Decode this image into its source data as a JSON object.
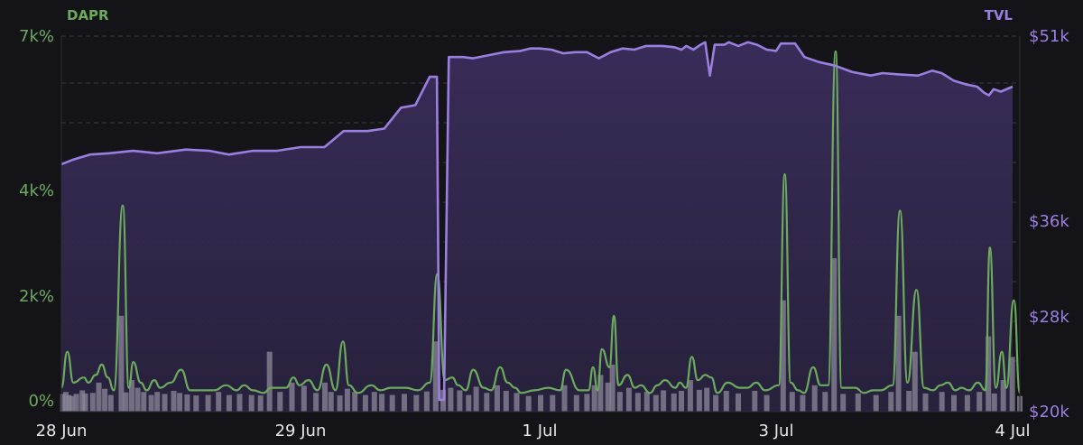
{
  "chart_data": {
    "type": "line",
    "left_axis": {
      "title": "DAPR",
      "ticks": [
        "7k%",
        "4k%",
        "2k%",
        "0%"
      ],
      "tick_values": [
        7000,
        4000,
        2000,
        0
      ],
      "range": [
        0,
        7000
      ],
      "color": "#6cab5e"
    },
    "right_axis": {
      "title": "TVL",
      "ticks": [
        "$51k",
        "$36k",
        "$28k",
        "$20k"
      ],
      "tick_values": [
        51000,
        36000,
        28000,
        20000
      ],
      "range": [
        20000,
        51000
      ],
      "color": "#9b7fe0"
    },
    "x_axis": {
      "ticks": [
        "28 Jun",
        "29 Jun",
        "1 Jul",
        "3 Jul",
        "4 Jul"
      ],
      "tick_positions_days": [
        0,
        1,
        2,
        3,
        4
      ]
    },
    "grid": true,
    "tvl_series": {
      "name": "TVL",
      "color": "#9b7fe0",
      "points": [
        [
          0.0,
          40600
        ],
        [
          0.05,
          41000
        ],
        [
          0.12,
          41400
        ],
        [
          0.2,
          41500
        ],
        [
          0.3,
          41700
        ],
        [
          0.4,
          41500
        ],
        [
          0.52,
          41800
        ],
        [
          0.62,
          41700
        ],
        [
          0.7,
          41400
        ],
        [
          0.8,
          41700
        ],
        [
          0.9,
          41700
        ],
        [
          1.0,
          42000
        ],
        [
          1.1,
          42000
        ],
        [
          1.18,
          43300
        ],
        [
          1.28,
          43300
        ],
        [
          1.35,
          43500
        ],
        [
          1.42,
          45200
        ],
        [
          1.48,
          45400
        ],
        [
          1.54,
          47700
        ],
        [
          1.57,
          47700
        ],
        [
          1.58,
          21000
        ],
        [
          1.6,
          21000
        ],
        [
          1.62,
          49300
        ],
        [
          1.68,
          49300
        ],
        [
          1.72,
          49200
        ],
        [
          1.8,
          49500
        ],
        [
          1.85,
          49700
        ],
        [
          1.92,
          49800
        ],
        [
          1.96,
          50000
        ],
        [
          2.0,
          50000
        ],
        [
          2.05,
          49900
        ],
        [
          2.1,
          49600
        ],
        [
          2.15,
          49700
        ],
        [
          2.2,
          49700
        ],
        [
          2.25,
          49200
        ],
        [
          2.3,
          49700
        ],
        [
          2.35,
          50000
        ],
        [
          2.4,
          49900
        ],
        [
          2.45,
          50200
        ],
        [
          2.52,
          50200
        ],
        [
          2.57,
          50100
        ],
        [
          2.6,
          49900
        ],
        [
          2.62,
          50200
        ],
        [
          2.65,
          49900
        ],
        [
          2.68,
          50300
        ],
        [
          2.7,
          50500
        ],
        [
          2.72,
          47800
        ],
        [
          2.74,
          50300
        ],
        [
          2.78,
          50300
        ],
        [
          2.8,
          50500
        ],
        [
          2.84,
          50200
        ],
        [
          2.88,
          50500
        ],
        [
          2.92,
          50300
        ],
        [
          2.96,
          49900
        ],
        [
          3.0,
          49800
        ],
        [
          3.02,
          50400
        ],
        [
          3.08,
          50400
        ],
        [
          3.12,
          49300
        ],
        [
          3.18,
          48900
        ],
        [
          3.25,
          48600
        ],
        [
          3.32,
          48100
        ],
        [
          3.4,
          47800
        ],
        [
          3.45,
          48000
        ],
        [
          3.52,
          47900
        ],
        [
          3.6,
          47800
        ],
        [
          3.66,
          48200
        ],
        [
          3.7,
          48000
        ],
        [
          3.75,
          47400
        ],
        [
          3.8,
          47100
        ],
        [
          3.85,
          46900
        ],
        [
          3.88,
          46400
        ],
        [
          3.9,
          46200
        ],
        [
          3.92,
          46700
        ],
        [
          3.95,
          46500
        ],
        [
          4.0,
          46900
        ]
      ]
    },
    "dapr_series": {
      "name": "DAPR",
      "color": "#6cab5e",
      "spikes": [
        [
          0.0,
          200
        ],
        [
          0.04,
          900
        ],
        [
          0.08,
          300
        ],
        [
          0.15,
          400
        ],
        [
          0.18,
          300
        ],
        [
          0.23,
          450
        ],
        [
          0.27,
          650
        ],
        [
          0.31,
          400
        ],
        [
          0.35,
          150
        ],
        [
          0.41,
          3700
        ],
        [
          0.45,
          200
        ],
        [
          0.48,
          700
        ],
        [
          0.53,
          300
        ],
        [
          0.57,
          150
        ],
        [
          0.62,
          350
        ],
        [
          0.66,
          200
        ],
        [
          0.73,
          300
        ],
        [
          0.8,
          550
        ],
        [
          0.86,
          150
        ],
        [
          0.94,
          150
        ],
        [
          1.02,
          150
        ],
        [
          1.1,
          250
        ],
        [
          1.17,
          150
        ],
        [
          1.22,
          250
        ],
        [
          1.28,
          150
        ],
        [
          1.35,
          100
        ],
        [
          1.4,
          200
        ],
        [
          1.5,
          200
        ],
        [
          1.55,
          400
        ],
        [
          1.59,
          250
        ],
        [
          1.65,
          350
        ],
        [
          1.71,
          150
        ],
        [
          1.77,
          650
        ],
        [
          1.83,
          150
        ],
        [
          1.88,
          1100
        ],
        [
          1.92,
          250
        ],
        [
          1.98,
          100
        ],
        [
          2.07,
          250
        ],
        [
          2.13,
          150
        ],
        [
          2.2,
          200
        ],
        [
          2.3,
          200
        ],
        [
          2.38,
          150
        ],
        [
          2.46,
          300
        ],
        [
          2.51,
          2400
        ],
        [
          2.56,
          350
        ],
        [
          2.61,
          400
        ],
        [
          2.65,
          250
        ],
        [
          2.7,
          150
        ],
        [
          2.75,
          550
        ],
        [
          2.82,
          200
        ],
        [
          2.87,
          150
        ],
        [
          2.93,
          600
        ],
        [
          2.98,
          300
        ],
        [
          3.03,
          200
        ],
        [
          3.07,
          100
        ],
        [
          3.16,
          150
        ],
        [
          3.25,
          200
        ],
        [
          3.33,
          150
        ],
        [
          3.37,
          550
        ],
        [
          3.46,
          150
        ],
        [
          3.52,
          150
        ],
        [
          3.55,
          600
        ],
        [
          3.58,
          150
        ],
        [
          3.61,
          950
        ],
        [
          3.66,
          600
        ],
        [
          3.69,
          1600
        ],
        [
          3.72,
          250
        ],
        [
          3.78,
          450
        ],
        [
          3.83,
          200
        ],
        [
          3.87,
          250
        ],
        [
          3.93,
          100
        ],
        [
          3.98,
          250
        ],
        [
          4.03,
          350
        ],
        [
          4.1,
          200
        ],
        [
          4.13,
          300
        ],
        [
          4.17,
          200
        ],
        [
          4.21,
          800
        ],
        [
          4.25,
          350
        ],
        [
          4.3,
          450
        ],
        [
          4.34,
          400
        ],
        [
          4.38,
          100
        ],
        [
          4.45,
          300
        ],
        [
          4.53,
          200
        ],
        [
          4.58,
          200
        ],
        [
          4.64,
          300
        ],
        [
          4.7,
          150
        ],
        [
          4.79,
          250
        ],
        [
          4.83,
          4300
        ],
        [
          4.87,
          300
        ],
        [
          4.92,
          150
        ],
        [
          4.96,
          100
        ],
        [
          5.02,
          600
        ],
        [
          5.07,
          250
        ],
        [
          5.12,
          250
        ],
        [
          5.17,
          6700
        ],
        [
          5.21,
          200
        ],
        [
          5.3,
          200
        ],
        [
          5.36,
          100
        ],
        [
          5.42,
          150
        ],
        [
          5.47,
          150
        ],
        [
          5.55,
          250
        ],
        [
          5.6,
          3600
        ],
        [
          5.65,
          300
        ],
        [
          5.71,
          2100
        ],
        [
          5.76,
          200
        ],
        [
          5.82,
          150
        ],
        [
          5.87,
          250
        ],
        [
          5.92,
          300
        ],
        [
          5.97,
          150
        ],
        [
          6.01,
          200
        ],
        [
          6.06,
          150
        ],
        [
          6.12,
          300
        ],
        [
          6.17,
          150
        ],
        [
          6.2,
          2900
        ],
        [
          6.24,
          200
        ],
        [
          6.28,
          900
        ],
        [
          6.31,
          200
        ],
        [
          6.36,
          1900
        ],
        [
          6.4,
          100
        ]
      ],
      "bars": [
        [
          0.01,
          80
        ],
        [
          0.03,
          120
        ],
        [
          0.05,
          60
        ],
        [
          0.07,
          40
        ],
        [
          0.1,
          80
        ],
        [
          0.14,
          150
        ],
        [
          0.16,
          90
        ],
        [
          0.21,
          100
        ],
        [
          0.25,
          300
        ],
        [
          0.29,
          180
        ],
        [
          0.33,
          60
        ],
        [
          0.4,
          1600
        ],
        [
          0.43,
          110
        ],
        [
          0.47,
          350
        ],
        [
          0.51,
          200
        ],
        [
          0.55,
          120
        ],
        [
          0.6,
          60
        ],
        [
          0.64,
          120
        ],
        [
          0.69,
          80
        ],
        [
          0.75,
          140
        ],
        [
          0.79,
          100
        ],
        [
          0.84,
          70
        ],
        [
          0.9,
          50
        ],
        [
          0.98,
          60
        ],
        [
          1.05,
          120
        ],
        [
          1.12,
          60
        ],
        [
          1.19,
          80
        ],
        [
          1.27,
          60
        ],
        [
          1.33,
          50
        ],
        [
          1.39,
          900
        ],
        [
          1.46,
          120
        ],
        [
          1.54,
          300
        ],
        [
          1.62,
          240
        ],
        [
          1.7,
          100
        ],
        [
          1.76,
          300
        ],
        [
          1.8,
          120
        ],
        [
          1.86,
          50
        ],
        [
          1.91,
          180
        ],
        [
          1.96,
          120
        ],
        [
          2.03,
          60
        ],
        [
          2.09,
          120
        ],
        [
          2.14,
          80
        ],
        [
          2.21,
          60
        ],
        [
          2.29,
          80
        ],
        [
          2.37,
          60
        ],
        [
          2.44,
          130
        ],
        [
          2.5,
          1100
        ],
        [
          2.55,
          160
        ],
        [
          2.6,
          200
        ],
        [
          2.66,
          150
        ],
        [
          2.72,
          60
        ],
        [
          2.77,
          220
        ],
        [
          2.84,
          100
        ],
        [
          2.91,
          250
        ],
        [
          2.97,
          140
        ],
        [
          3.04,
          100
        ],
        [
          3.12,
          40
        ],
        [
          3.2,
          60
        ],
        [
          3.28,
          60
        ],
        [
          3.36,
          250
        ],
        [
          3.44,
          60
        ],
        [
          3.51,
          80
        ],
        [
          3.56,
          250
        ],
        [
          3.6,
          450
        ],
        [
          3.65,
          300
        ],
        [
          3.68,
          650
        ],
        [
          3.73,
          120
        ],
        [
          3.79,
          200
        ],
        [
          3.85,
          100
        ],
        [
          3.91,
          120
        ],
        [
          3.97,
          60
        ],
        [
          4.02,
          150
        ],
        [
          4.09,
          90
        ],
        [
          4.14,
          140
        ],
        [
          4.2,
          350
        ],
        [
          4.26,
          160
        ],
        [
          4.31,
          200
        ],
        [
          4.37,
          60
        ],
        [
          4.44,
          140
        ],
        [
          4.52,
          90
        ],
        [
          4.63,
          140
        ],
        [
          4.71,
          60
        ],
        [
          4.82,
          1900
        ],
        [
          4.88,
          120
        ],
        [
          4.95,
          60
        ],
        [
          5.03,
          250
        ],
        [
          5.1,
          120
        ],
        [
          5.16,
          2700
        ],
        [
          5.22,
          80
        ],
        [
          5.32,
          90
        ],
        [
          5.44,
          60
        ],
        [
          5.54,
          120
        ],
        [
          5.59,
          1600
        ],
        [
          5.66,
          140
        ],
        [
          5.7,
          900
        ],
        [
          5.77,
          90
        ],
        [
          5.88,
          120
        ],
        [
          5.96,
          60
        ],
        [
          6.05,
          60
        ],
        [
          6.13,
          120
        ],
        [
          6.19,
          1200
        ],
        [
          6.23,
          90
        ],
        [
          6.29,
          350
        ],
        [
          6.35,
          800
        ],
        [
          6.4,
          40
        ]
      ]
    }
  }
}
